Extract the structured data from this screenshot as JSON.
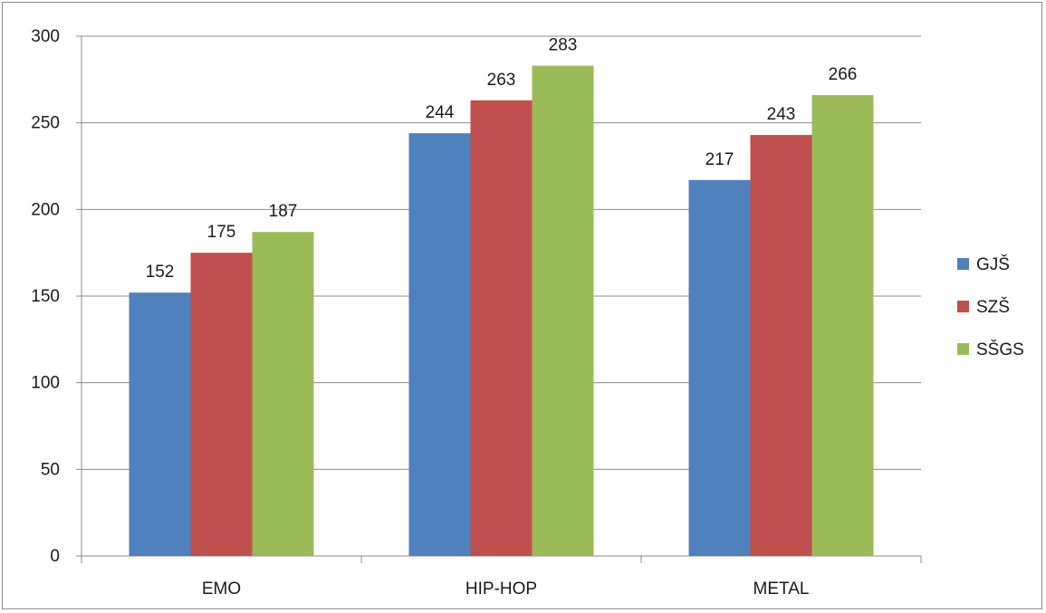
{
  "chart_data": {
    "type": "bar",
    "categories": [
      "EMO",
      "HIP-HOP",
      "METAL"
    ],
    "series": [
      {
        "name": "GJŠ",
        "values": [
          152,
          244,
          217
        ],
        "color": "#4f81bd"
      },
      {
        "name": "SZŠ",
        "values": [
          175,
          263,
          243
        ],
        "color": "#c0504d"
      },
      {
        "name": "SŠGS",
        "values": [
          187,
          283,
          266
        ],
        "color": "#9bbb59"
      }
    ],
    "ylim": [
      0,
      300
    ],
    "yticks": [
      0,
      50,
      100,
      150,
      200,
      250,
      300
    ],
    "grid": true,
    "legend": "right",
    "data_labels": true
  }
}
